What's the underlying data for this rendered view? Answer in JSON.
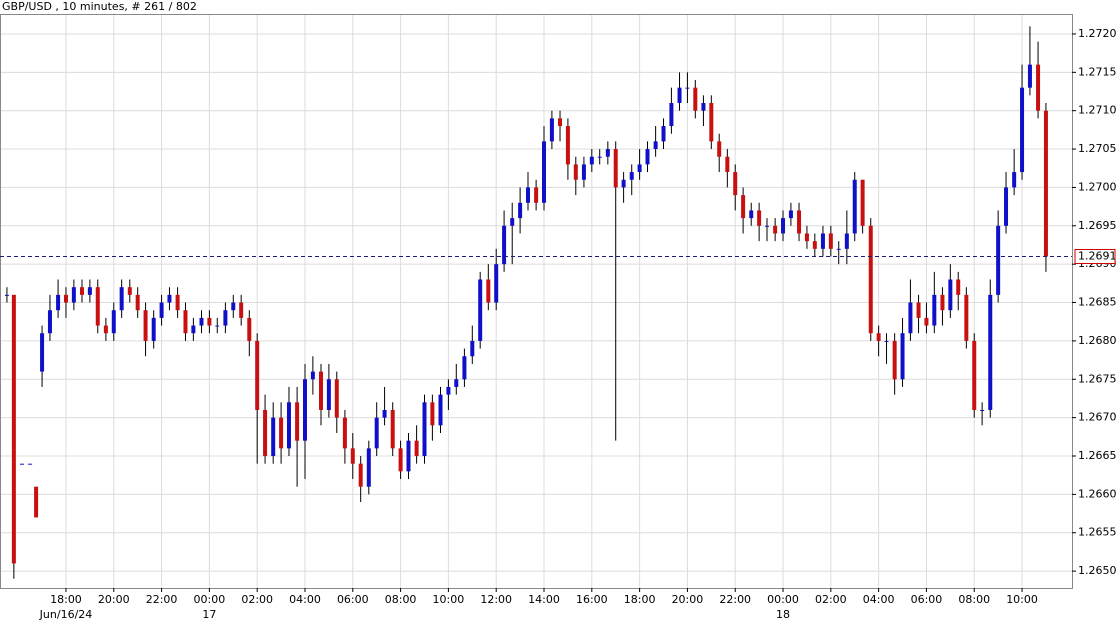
{
  "chart_data": {
    "type": "candlestick",
    "title": "GBP/USD , 10 minutes, # 261 / 802",
    "x": [
      15.53,
      15.82,
      16.16,
      16.5,
      16.75,
      17,
      17.33,
      17.67,
      18,
      18.33,
      18.67,
      19,
      19.33,
      19.67,
      20,
      20.33,
      20.67,
      21,
      21.33,
      21.67,
      22,
      22.33,
      22.67,
      23,
      23.33,
      23.67,
      24,
      24.33,
      24.67,
      25,
      25.33,
      25.67,
      26,
      26.33,
      26.67,
      27,
      27.33,
      27.67,
      28,
      28.33,
      28.67,
      29,
      29.33,
      29.67,
      30,
      30.33,
      30.67,
      31,
      31.33,
      31.67,
      32,
      32.33,
      32.67,
      33,
      33.33,
      33.67,
      34,
      34.33,
      34.67,
      35,
      35.33,
      35.67,
      36,
      36.33,
      36.67,
      37,
      37.33,
      37.67,
      38,
      38.33,
      38.67,
      39,
      39.33,
      39.67,
      40,
      40.33,
      40.67,
      41,
      41.33,
      41.67,
      42,
      42.33,
      42.67,
      43,
      43.33,
      43.67,
      44,
      44.33,
      44.67,
      45,
      45.33,
      45.67,
      46,
      46.33,
      46.67,
      47,
      47.33,
      47.67,
      48,
      48.33,
      48.67,
      49,
      49.33,
      49.67,
      50,
      50.33,
      50.67,
      51,
      51.33,
      51.67,
      52,
      52.33,
      52.67,
      53,
      53.33,
      53.67,
      54,
      54.33,
      54.67,
      55,
      55.33,
      55.67,
      56,
      56.33,
      56.67,
      57,
      57.33,
      57.67,
      58,
      58.33,
      58.67,
      59
    ],
    "open": [
      1.2686,
      1.2686,
      1.2664,
      1.2664,
      1.2661,
      1.2676,
      1.2681,
      1.2684,
      1.2686,
      1.2685,
      1.2687,
      1.2686,
      1.2687,
      1.2682,
      1.2681,
      1.2684,
      1.2687,
      1.2686,
      1.2684,
      1.268,
      1.2683,
      1.2685,
      1.2686,
      1.2684,
      1.2681,
      1.2682,
      1.2683,
      1.2682,
      1.2682,
      1.2684,
      1.2685,
      1.2683,
      1.268,
      1.2671,
      1.2665,
      1.267,
      1.2666,
      1.2672,
      1.2667,
      1.2675,
      1.2676,
      1.2671,
      1.2675,
      1.267,
      1.2666,
      1.2664,
      1.2661,
      1.2666,
      1.267,
      1.2671,
      1.2666,
      1.2663,
      1.2667,
      1.2665,
      1.2672,
      1.2669,
      1.2673,
      1.2674,
      1.2675,
      1.2678,
      1.268,
      1.2688,
      1.2685,
      1.269,
      1.2695,
      1.2696,
      1.2698,
      1.27,
      1.2698,
      1.2706,
      1.2709,
      1.2708,
      1.2703,
      1.2701,
      1.2703,
      1.2704,
      1.2704,
      1.2705,
      1.27,
      1.2701,
      1.2702,
      1.2703,
      1.2705,
      1.2706,
      1.2708,
      1.2711,
      1.2713,
      1.2713,
      1.271,
      1.2711,
      1.2706,
      1.2704,
      1.2702,
      1.2699,
      1.2696,
      1.2697,
      1.2695,
      1.2695,
      1.2694,
      1.2696,
      1.2697,
      1.2694,
      1.2693,
      1.2692,
      1.2694,
      1.2692,
      1.2692,
      1.2694,
      1.2701,
      1.2695,
      1.2681,
      1.268,
      1.268,
      1.2675,
      1.2681,
      1.2685,
      1.2683,
      1.2682,
      1.2686,
      1.2684,
      1.2688,
      1.2686,
      1.268,
      1.2671,
      1.2671,
      1.2686,
      1.2695,
      1.27,
      1.2702,
      1.2713,
      1.2716,
      1.271
    ],
    "high": [
      1.2687,
      1.2686,
      1.2664,
      1.2664,
      1.2661,
      1.2682,
      1.2686,
      1.2688,
      1.2687,
      1.2688,
      1.2688,
      1.2688,
      1.2688,
      1.2683,
      1.2685,
      1.2688,
      1.2688,
      1.2687,
      1.2685,
      1.2684,
      1.2686,
      1.2687,
      1.2687,
      1.2685,
      1.2683,
      1.2684,
      1.2684,
      1.2683,
      1.2685,
      1.2686,
      1.2686,
      1.2684,
      1.2681,
      1.2673,
      1.2672,
      1.2672,
      1.2674,
      1.2674,
      1.2677,
      1.2678,
      1.2677,
      1.2677,
      1.2676,
      1.2671,
      1.2668,
      1.2665,
      1.2667,
      1.2672,
      1.2674,
      1.2672,
      1.2667,
      1.2668,
      1.2669,
      1.2673,
      1.2673,
      1.2674,
      1.2675,
      1.2677,
      1.2679,
      1.2682,
      1.2689,
      1.269,
      1.2692,
      1.2697,
      1.2698,
      1.27,
      1.2702,
      1.2701,
      1.2708,
      1.271,
      1.271,
      1.2709,
      1.2704,
      1.2704,
      1.2705,
      1.2705,
      1.2706,
      1.2706,
      1.2702,
      1.2703,
      1.2705,
      1.2706,
      1.2708,
      1.2709,
      1.2713,
      1.2715,
      1.2715,
      1.2714,
      1.2712,
      1.2712,
      1.2707,
      1.2705,
      1.2703,
      1.27,
      1.2698,
      1.2698,
      1.2696,
      1.2696,
      1.2697,
      1.2698,
      1.2698,
      1.2695,
      1.2694,
      1.2695,
      1.2695,
      1.2693,
      1.2697,
      1.2702,
      1.2701,
      1.2696,
      1.2682,
      1.2681,
      1.2681,
      1.2683,
      1.2688,
      1.2686,
      1.2685,
      1.2689,
      1.2687,
      1.269,
      1.2689,
      1.2687,
      1.2681,
      1.2672,
      1.2688,
      1.2697,
      1.2702,
      1.2705,
      1.2716,
      1.2721,
      1.2719,
      1.2711
    ],
    "low": [
      1.2685,
      1.2649,
      1.2664,
      1.2664,
      1.2657,
      1.2674,
      1.268,
      1.2683,
      1.2683,
      1.2684,
      1.2685,
      1.2685,
      1.2681,
      1.268,
      1.268,
      1.2683,
      1.2685,
      1.2683,
      1.2678,
      1.2679,
      1.2682,
      1.2684,
      1.2683,
      1.268,
      1.268,
      1.2681,
      1.2681,
      1.2681,
      1.2681,
      1.2683,
      1.2682,
      1.2678,
      1.2664,
      1.2664,
      1.2664,
      1.2664,
      1.2665,
      1.2661,
      1.2662,
      1.2673,
      1.2669,
      1.267,
      1.2668,
      1.2664,
      1.2662,
      1.2659,
      1.266,
      1.2665,
      1.2669,
      1.2665,
      1.2662,
      1.2662,
      1.2664,
      1.2664,
      1.2667,
      1.2668,
      1.2671,
      1.2673,
      1.2674,
      1.2677,
      1.2679,
      1.2684,
      1.2684,
      1.2689,
      1.269,
      1.2694,
      1.2697,
      1.2697,
      1.2697,
      1.2705,
      1.2706,
      1.2701,
      1.2699,
      1.27,
      1.2702,
      1.2703,
      1.2703,
      1.2667,
      1.2698,
      1.2699,
      1.2701,
      1.2702,
      1.2704,
      1.2705,
      1.2707,
      1.271,
      1.2711,
      1.2709,
      1.2708,
      1.2705,
      1.2702,
      1.27,
      1.2697,
      1.2694,
      1.2695,
      1.2693,
      1.2693,
      1.2693,
      1.2693,
      1.2695,
      1.2693,
      1.2692,
      1.2691,
      1.2691,
      1.2691,
      1.269,
      1.269,
      1.2693,
      1.2694,
      1.268,
      1.2678,
      1.2677,
      1.2673,
      1.2674,
      1.268,
      1.2681,
      1.2681,
      1.2681,
      1.2682,
      1.2683,
      1.2684,
      1.2679,
      1.267,
      1.2669,
      1.267,
      1.2685,
      1.2694,
      1.2699,
      1.2701,
      1.2712,
      1.2709,
      1.2689
    ],
    "close": [
      1.2686,
      1.2651,
      1.2664,
      1.2664,
      1.2657,
      1.2681,
      1.2684,
      1.2686,
      1.2685,
      1.2687,
      1.2686,
      1.2687,
      1.2682,
      1.2681,
      1.2684,
      1.2687,
      1.2686,
      1.2684,
      1.268,
      1.2683,
      1.2685,
      1.2686,
      1.2684,
      1.2681,
      1.2682,
      1.2683,
      1.2682,
      1.2682,
      1.2684,
      1.2685,
      1.2683,
      1.268,
      1.2671,
      1.2665,
      1.267,
      1.2666,
      1.2672,
      1.2667,
      1.2675,
      1.2676,
      1.2671,
      1.2675,
      1.267,
      1.2666,
      1.2664,
      1.2661,
      1.2666,
      1.267,
      1.2671,
      1.2666,
      1.2663,
      1.2667,
      1.2665,
      1.2672,
      1.2669,
      1.2673,
      1.2674,
      1.2675,
      1.2678,
      1.268,
      1.2688,
      1.2685,
      1.269,
      1.2695,
      1.2696,
      1.2698,
      1.27,
      1.2698,
      1.2706,
      1.2709,
      1.2708,
      1.2703,
      1.2701,
      1.2703,
      1.2704,
      1.2704,
      1.2705,
      1.27,
      1.2701,
      1.2702,
      1.2703,
      1.2705,
      1.2706,
      1.2708,
      1.2711,
      1.2713,
      1.2713,
      1.271,
      1.2711,
      1.2706,
      1.2704,
      1.2702,
      1.2699,
      1.2696,
      1.2697,
      1.2695,
      1.2695,
      1.2694,
      1.2696,
      1.2697,
      1.2694,
      1.2693,
      1.2692,
      1.2694,
      1.2692,
      1.2692,
      1.2694,
      1.2701,
      1.2695,
      1.2681,
      1.268,
      1.268,
      1.2675,
      1.2681,
      1.2685,
      1.2683,
      1.2682,
      1.2686,
      1.2684,
      1.2688,
      1.2686,
      1.268,
      1.2671,
      1.2671,
      1.2686,
      1.2695,
      1.27,
      1.2702,
      1.2713,
      1.2716,
      1.271,
      1.2691
    ],
    "up_color": "#1010c8",
    "down_color": "#c81010",
    "last_price": 1.2691,
    "last_price_color": "#1a1a80",
    "xlim": [
      15.24,
      60.09
    ],
    "xticks": [
      {
        "value": 18,
        "label": "18:00"
      },
      {
        "value": 20,
        "label": "20:00"
      },
      {
        "value": 22,
        "label": "22:00"
      },
      {
        "value": 24,
        "label": "00:00"
      },
      {
        "value": 26,
        "label": "02:00"
      },
      {
        "value": 28,
        "label": "04:00"
      },
      {
        "value": 30,
        "label": "06:00"
      },
      {
        "value": 32,
        "label": "08:00"
      },
      {
        "value": 34,
        "label": "10:00"
      },
      {
        "value": 36,
        "label": "12:00"
      },
      {
        "value": 38,
        "label": "14:00"
      },
      {
        "value": 40,
        "label": "16:00"
      },
      {
        "value": 42,
        "label": "18:00"
      },
      {
        "value": 44,
        "label": "20:00"
      },
      {
        "value": 46,
        "label": "22:00"
      },
      {
        "value": 48,
        "label": "00:00"
      },
      {
        "value": 50,
        "label": "02:00"
      },
      {
        "value": 52,
        "label": "04:00"
      },
      {
        "value": 54,
        "label": "06:00"
      },
      {
        "value": 56,
        "label": "08:00"
      },
      {
        "value": 58,
        "label": "10:00"
      }
    ],
    "date_labels": [
      {
        "value": 18,
        "label": "Jun/16/24"
      },
      {
        "value": 24,
        "label": "17"
      },
      {
        "value": 48,
        "label": "18"
      }
    ],
    "ylim": [
      1.26478,
      1.27226
    ],
    "yticks": [
      {
        "value": 1.265,
        "label": "1.2650"
      },
      1.2655,
      {
        "value": 1.266,
        "label": "1.2660"
      },
      1.2665,
      {
        "value": 1.267,
        "label": "1.2670"
      },
      1.2675,
      {
        "value": 1.268,
        "label": "1.2680"
      },
      1.2685,
      {
        "value": 1.269,
        "label": "1.2690"
      },
      1.2695,
      {
        "value": 1.27,
        "label": "1.2700"
      },
      1.2705,
      {
        "value": 1.271,
        "label": "1.2710"
      },
      1.2715,
      {
        "value": 1.272,
        "label": "1.2720"
      }
    ],
    "grid": true
  }
}
